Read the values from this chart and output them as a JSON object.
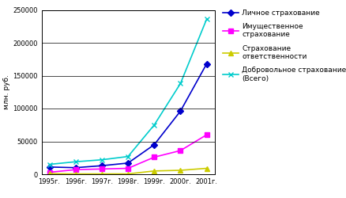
{
  "years": [
    "1995г.",
    "1996г.",
    "1997г.",
    "1998г.",
    "1999г.",
    "2000г.",
    "2001г."
  ],
  "series": [
    {
      "label": "Личное страхование",
      "values": [
        11000,
        10000,
        13000,
        17000,
        45000,
        96000,
        168000
      ],
      "color": "#0000CC",
      "marker": "D",
      "markersize": 4
    },
    {
      "label": "Имущественное\nстрахование",
      "values": [
        3000,
        7000,
        8000,
        9000,
        26000,
        36000,
        60000
      ],
      "color": "#FF00FF",
      "marker": "s",
      "markersize": 4
    },
    {
      "label": "Страхование\nответственности",
      "values": [
        1000,
        500,
        500,
        500,
        5000,
        6000,
        9000
      ],
      "color": "#CCCC00",
      "marker": "^",
      "markersize": 4
    },
    {
      "label": "Добровольное страхование\n(Всего)",
      "values": [
        15000,
        19000,
        22000,
        27000,
        75000,
        138000,
        236000
      ],
      "color": "#00CCCC",
      "marker": "x",
      "markersize": 5
    }
  ],
  "ylabel": "млн. руб.",
  "ylim": [
    0,
    250000
  ],
  "yticks": [
    0,
    50000,
    100000,
    150000,
    200000,
    250000
  ],
  "legend_fontsize": 6.5,
  "axis_fontsize": 6.5,
  "tick_fontsize": 6,
  "background_color": "#ffffff",
  "grid_color": "#000000",
  "linewidth": 1.2
}
